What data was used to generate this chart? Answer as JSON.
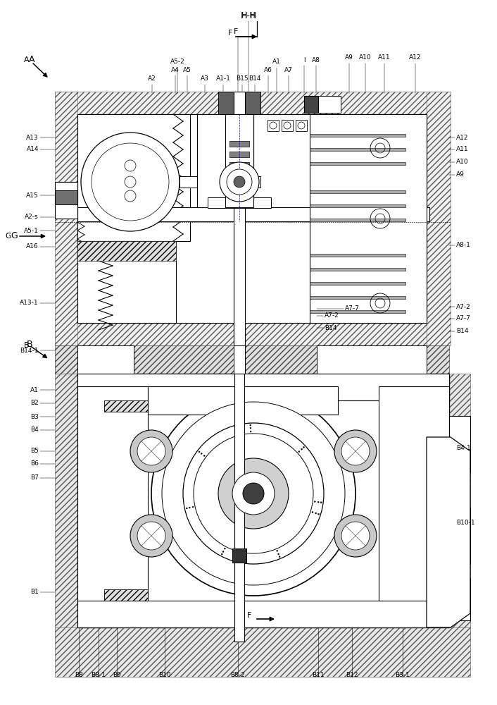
{
  "bg_color": "#ffffff",
  "line_color": "#000000",
  "fig_width": 7.06,
  "fig_height": 10.0,
  "dpi": 100,
  "top_labels": [
    [
      353,
      22,
      "H-H",
      8,
      "center"
    ],
    [
      338,
      45,
      "F",
      8,
      "right"
    ],
    [
      216,
      112,
      "A2",
      6.5,
      "center"
    ],
    [
      249,
      99,
      "A4",
      6.5,
      "center"
    ],
    [
      266,
      99,
      "A5",
      6.5,
      "center"
    ],
    [
      252,
      88,
      "A5-2",
      6.5,
      "center"
    ],
    [
      291,
      112,
      "A3",
      6.5,
      "center"
    ],
    [
      317,
      112,
      "A1-1",
      6.5,
      "center"
    ],
    [
      344,
      112,
      "B15",
      6.5,
      "center"
    ],
    [
      362,
      112,
      "B14",
      6.5,
      "center"
    ],
    [
      381,
      99,
      "A6",
      6.5,
      "center"
    ],
    [
      393,
      88,
      "A1",
      6.5,
      "center"
    ],
    [
      410,
      99,
      "A7",
      6.5,
      "center"
    ],
    [
      432,
      85,
      "I",
      6.5,
      "center"
    ],
    [
      449,
      85,
      "A8",
      6.5,
      "center"
    ],
    [
      496,
      82,
      "A9",
      6.5,
      "center"
    ],
    [
      519,
      82,
      "A10",
      6.5,
      "center"
    ],
    [
      546,
      82,
      "A11",
      6.5,
      "center"
    ],
    [
      590,
      82,
      "A12",
      6.5,
      "center"
    ]
  ],
  "left_labels": [
    [
      38,
      85,
      "A",
      8,
      "center"
    ],
    [
      12,
      335,
      "G",
      8,
      "center"
    ],
    [
      38,
      490,
      "B",
      8,
      "center"
    ],
    [
      55,
      277,
      "A15",
      6.5,
      "right"
    ],
    [
      55,
      308,
      "A2-s",
      6.5,
      "right"
    ],
    [
      55,
      327,
      "A5-1",
      6.5,
      "right"
    ],
    [
      55,
      350,
      "A16",
      6.5,
      "right"
    ],
    [
      55,
      195,
      "A13",
      6.5,
      "right"
    ],
    [
      55,
      212,
      "A14",
      6.5,
      "right"
    ],
    [
      55,
      430,
      "A13-1",
      6.5,
      "right"
    ],
    [
      55,
      497,
      "B14-1",
      6.5,
      "right"
    ],
    [
      55,
      553,
      "A1",
      6.5,
      "right"
    ],
    [
      55,
      572,
      "B2",
      6.5,
      "right"
    ],
    [
      55,
      591,
      "B3",
      6.5,
      "right"
    ],
    [
      55,
      610,
      "B4",
      6.5,
      "right"
    ],
    [
      55,
      640,
      "B5",
      6.5,
      "right"
    ],
    [
      55,
      658,
      "B6",
      6.5,
      "right"
    ],
    [
      55,
      678,
      "B7",
      6.5,
      "right"
    ],
    [
      55,
      840,
      "B1",
      6.5,
      "right"
    ]
  ],
  "right_labels": [
    [
      648,
      195,
      "A12",
      6.5,
      "left"
    ],
    [
      648,
      212,
      "A11",
      6.5,
      "left"
    ],
    [
      648,
      230,
      "A10",
      6.5,
      "left"
    ],
    [
      648,
      248,
      "A9",
      6.5,
      "left"
    ],
    [
      648,
      348,
      "A8-1",
      6.5,
      "left"
    ],
    [
      648,
      452,
      "A7-7",
      6.5,
      "left"
    ],
    [
      648,
      435,
      "A7-2",
      6.5,
      "left"
    ],
    [
      648,
      470,
      "B14",
      6.5,
      "left"
    ],
    [
      648,
      635,
      "B4-1",
      6.5,
      "left"
    ],
    [
      648,
      742,
      "B10-1",
      6.5,
      "left"
    ]
  ],
  "bottom_labels": [
    [
      112,
      957,
      "B8",
      6.5,
      "center"
    ],
    [
      140,
      957,
      "B8-1",
      6.5,
      "center"
    ],
    [
      166,
      957,
      "B9",
      6.5,
      "center"
    ],
    [
      234,
      957,
      "B10",
      6.5,
      "center"
    ],
    [
      338,
      957,
      "B8-2",
      6.5,
      "center"
    ],
    [
      452,
      957,
      "B11",
      6.5,
      "center"
    ],
    [
      500,
      957,
      "B12",
      6.5,
      "center"
    ],
    [
      572,
      957,
      "B3-1",
      6.5,
      "center"
    ]
  ],
  "mid_labels": [
    [
      461,
      448,
      "A7-2",
      6.5,
      "left"
    ],
    [
      490,
      438,
      "A7-7",
      6.5,
      "left"
    ],
    [
      461,
      465,
      "B14",
      6.5,
      "left"
    ]
  ]
}
